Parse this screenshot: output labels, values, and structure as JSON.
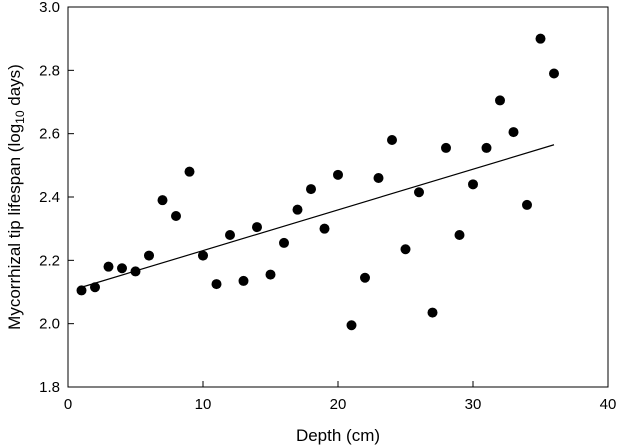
{
  "chart_data": {
    "type": "scatter",
    "title": "",
    "xlabel": "Depth (cm)",
    "ylabel": {
      "prefix": "Mycorrhizal tip lifespan (log",
      "subscript": "10",
      "suffix": " days)"
    },
    "xlim": [
      0,
      40
    ],
    "ylim": [
      1.8,
      3.0
    ],
    "xticks": [
      0,
      10,
      20,
      30,
      40
    ],
    "yticks": [
      1.8,
      2.0,
      2.2,
      2.4,
      2.6,
      2.8,
      3.0
    ],
    "ytick_labels": [
      "1.8",
      "2.0",
      "2.2",
      "2.4",
      "2.6",
      "2.8",
      "3.0"
    ],
    "grid": false,
    "legend": null,
    "points": [
      {
        "x": 1,
        "y": 2.105
      },
      {
        "x": 2,
        "y": 2.115
      },
      {
        "x": 3,
        "y": 2.18
      },
      {
        "x": 4,
        "y": 2.175
      },
      {
        "x": 5,
        "y": 2.165
      },
      {
        "x": 6,
        "y": 2.215
      },
      {
        "x": 7,
        "y": 2.39
      },
      {
        "x": 8,
        "y": 2.34
      },
      {
        "x": 9,
        "y": 2.48
      },
      {
        "x": 10,
        "y": 2.215
      },
      {
        "x": 11,
        "y": 2.125
      },
      {
        "x": 12,
        "y": 2.28
      },
      {
        "x": 13,
        "y": 2.135
      },
      {
        "x": 14,
        "y": 2.305
      },
      {
        "x": 15,
        "y": 2.155
      },
      {
        "x": 16,
        "y": 2.255
      },
      {
        "x": 17,
        "y": 2.36
      },
      {
        "x": 18,
        "y": 2.425
      },
      {
        "x": 19,
        "y": 2.3
      },
      {
        "x": 20,
        "y": 2.47
      },
      {
        "x": 21,
        "y": 1.995
      },
      {
        "x": 22,
        "y": 2.145
      },
      {
        "x": 23,
        "y": 2.46
      },
      {
        "x": 24,
        "y": 2.58
      },
      {
        "x": 25,
        "y": 2.235
      },
      {
        "x": 26,
        "y": 2.415
      },
      {
        "x": 27,
        "y": 2.035
      },
      {
        "x": 28,
        "y": 2.555
      },
      {
        "x": 29,
        "y": 2.28
      },
      {
        "x": 30,
        "y": 2.44
      },
      {
        "x": 31,
        "y": 2.555
      },
      {
        "x": 32,
        "y": 2.705
      },
      {
        "x": 33,
        "y": 2.605
      },
      {
        "x": 34,
        "y": 2.375
      },
      {
        "x": 35,
        "y": 2.9
      },
      {
        "x": 36,
        "y": 2.79
      }
    ],
    "fit_line": {
      "x": [
        1,
        36
      ],
      "y": [
        2.115,
        2.565
      ]
    },
    "colors": {
      "marker": "#000000",
      "line": "#000000",
      "axis": "#000000"
    }
  }
}
